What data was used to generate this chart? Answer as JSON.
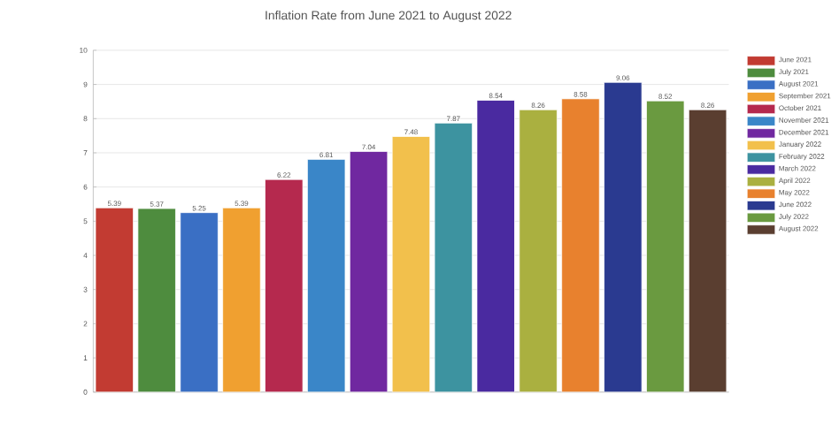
{
  "chart_data": {
    "type": "bar",
    "title": "Inflation Rate from June 2021 to August 2022",
    "categories": [
      null,
      null,
      null,
      null,
      null,
      null,
      null,
      null,
      null,
      null,
      null,
      null,
      null,
      null,
      null
    ],
    "series": [
      {
        "name": "June 2021",
        "color": "#c23b32",
        "values": [
          5.39,
          null,
          null,
          null,
          null,
          null,
          null,
          null,
          null,
          null,
          null,
          null,
          null,
          null,
          null
        ]
      },
      {
        "name": "July 2021",
        "color": "#4e8c3e",
        "values": [
          null,
          5.37,
          null,
          null,
          null,
          null,
          null,
          null,
          null,
          null,
          null,
          null,
          null,
          null,
          null
        ]
      },
      {
        "name": "August 2021",
        "color": "#3a6fc4",
        "values": [
          null,
          null,
          5.25,
          null,
          null,
          null,
          null,
          null,
          null,
          null,
          null,
          null,
          null,
          null,
          null
        ]
      },
      {
        "name": "September 2021",
        "color": "#f0a030",
        "values": [
          null,
          null,
          null,
          5.39,
          null,
          null,
          null,
          null,
          null,
          null,
          null,
          null,
          null,
          null,
          null
        ]
      },
      {
        "name": "October 2021",
        "color": "#b5294e",
        "values": [
          null,
          null,
          null,
          null,
          6.22,
          null,
          null,
          null,
          null,
          null,
          null,
          null,
          null,
          null,
          null
        ]
      },
      {
        "name": "November 2021",
        "color": "#3a86c8",
        "values": [
          null,
          null,
          null,
          null,
          null,
          6.81,
          null,
          null,
          null,
          null,
          null,
          null,
          null,
          null,
          null
        ]
      },
      {
        "name": "December 2021",
        "color": "#7028a0",
        "values": [
          null,
          null,
          null,
          null,
          null,
          null,
          7.04,
          null,
          null,
          null,
          null,
          null,
          null,
          null,
          null
        ]
      },
      {
        "name": "January 2022",
        "color": "#f2c04c",
        "values": [
          null,
          null,
          null,
          null,
          null,
          null,
          null,
          7.48,
          null,
          null,
          null,
          null,
          null,
          null,
          null
        ]
      },
      {
        "name": "February 2022",
        "color": "#3d93a0",
        "values": [
          null,
          null,
          null,
          null,
          null,
          null,
          null,
          null,
          7.87,
          null,
          null,
          null,
          null,
          null,
          null
        ]
      },
      {
        "name": "March 2022",
        "color": "#4a2aa0",
        "values": [
          null,
          null,
          null,
          null,
          null,
          null,
          null,
          null,
          null,
          8.54,
          null,
          null,
          null,
          null,
          null
        ]
      },
      {
        "name": "April 2022",
        "color": "#aab040",
        "values": [
          null,
          null,
          null,
          null,
          null,
          null,
          null,
          null,
          null,
          null,
          8.26,
          null,
          null,
          null,
          null
        ]
      },
      {
        "name": "May 2022",
        "color": "#e8812e",
        "values": [
          null,
          null,
          null,
          null,
          null,
          null,
          null,
          null,
          null,
          null,
          null,
          8.58,
          null,
          null,
          null
        ]
      },
      {
        "name": "June 2022",
        "color": "#2a3a90",
        "values": [
          null,
          null,
          null,
          null,
          null,
          null,
          null,
          null,
          null,
          null,
          null,
          null,
          9.06,
          null,
          null
        ]
      },
      {
        "name": "July 2022",
        "color": "#6a9a40",
        "values": [
          null,
          null,
          null,
          null,
          null,
          null,
          null,
          null,
          null,
          null,
          null,
          null,
          null,
          8.52,
          null
        ]
      },
      {
        "name": "August 2022",
        "color": "#5a3e30",
        "values": [
          null,
          null,
          null,
          null,
          null,
          null,
          null,
          null,
          null,
          null,
          null,
          null,
          null,
          null,
          8.26
        ]
      }
    ],
    "ylim": [
      0,
      10
    ],
    "yticks": [
      0,
      1,
      2,
      3,
      4,
      5,
      6,
      7,
      8,
      9,
      10
    ],
    "grid": "y",
    "legend": "right",
    "data_labels": true,
    "tick_labels": "y"
  }
}
